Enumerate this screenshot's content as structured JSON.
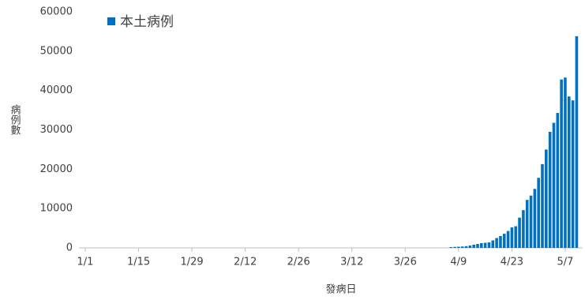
{
  "chart_data": {
    "type": "bar",
    "legend_label": "本土病例",
    "x_label": "發病日",
    "y_label": "病例數",
    "color": "#0070c0",
    "series": [
      {
        "name": "本土病例",
        "color": "#0070c0",
        "values": [
          0,
          0,
          0,
          0,
          0,
          0,
          0,
          0,
          0,
          0,
          0,
          0,
          0,
          0,
          0,
          0,
          0,
          0,
          0,
          0,
          0,
          0,
          0,
          0,
          0,
          0,
          0,
          0,
          0,
          0,
          0,
          0,
          0,
          0,
          0,
          0,
          0,
          0,
          0,
          0,
          0,
          0,
          0,
          0,
          0,
          0,
          0,
          0,
          0,
          0,
          0,
          0,
          0,
          0,
          0,
          0,
          0,
          0,
          0,
          0,
          0,
          0,
          0,
          0,
          0,
          0,
          0,
          0,
          0,
          0,
          0,
          0,
          0,
          0,
          0,
          0,
          0,
          0,
          0,
          0,
          0,
          0,
          0,
          0,
          0,
          0,
          0,
          0,
          0,
          0,
          0,
          0,
          0,
          0,
          0,
          0,
          200,
          250,
          300,
          350,
          450,
          600,
          800,
          1000,
          1200,
          1300,
          1400,
          1900,
          2500,
          3000,
          3600,
          4300,
          5200,
          5500,
          7700,
          9600,
          12200,
          13300,
          15000,
          17800,
          21300,
          25000,
          29500,
          31800,
          34300,
          42800,
          43300,
          38500,
          37500,
          53800
        ]
      }
    ],
    "categories": [
      "1/1",
      null,
      null,
      null,
      null,
      null,
      null,
      null,
      null,
      null,
      null,
      null,
      null,
      null,
      "1/15",
      null,
      null,
      null,
      null,
      null,
      null,
      null,
      null,
      null,
      null,
      null,
      null,
      null,
      "1/29",
      null,
      null,
      null,
      null,
      null,
      null,
      null,
      null,
      null,
      null,
      null,
      null,
      null,
      "2/12",
      null,
      null,
      null,
      null,
      null,
      null,
      null,
      null,
      null,
      null,
      null,
      null,
      null,
      "2/26",
      null,
      null,
      null,
      null,
      null,
      null,
      null,
      null,
      null,
      null,
      null,
      null,
      null,
      "3/12",
      null,
      null,
      null,
      null,
      null,
      null,
      null,
      null,
      null,
      null,
      null,
      null,
      null,
      "3/26",
      null,
      null,
      null,
      null,
      null,
      null,
      null,
      null,
      null,
      null,
      null,
      null,
      null,
      "4/9",
      null,
      null,
      null,
      null,
      null,
      null,
      null,
      null,
      null,
      null,
      null,
      null,
      null,
      "4/23",
      null,
      null,
      null,
      null,
      null,
      null,
      null,
      null,
      null,
      null,
      null,
      null,
      null,
      "5/7",
      null,
      null,
      null
    ],
    "ylim": [
      0,
      60000
    ],
    "yticks": [
      0,
      10000,
      20000,
      30000,
      40000,
      50000,
      60000
    ],
    "grid": false
  }
}
